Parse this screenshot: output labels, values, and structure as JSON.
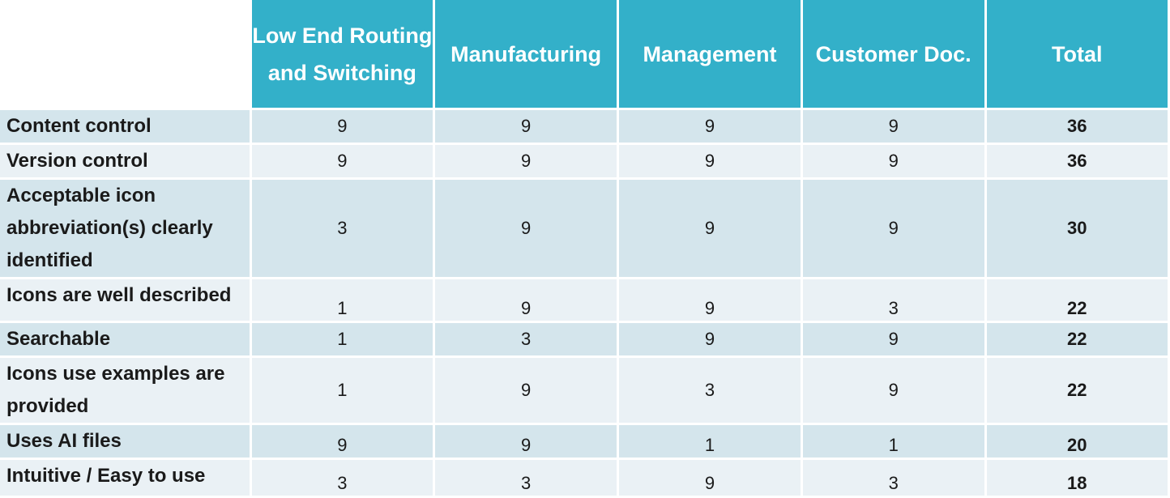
{
  "columns": [
    "Low End Routing and Switching",
    "Manufacturing",
    "Management",
    "Customer Doc.",
    "Total"
  ],
  "rows": [
    {
      "label": "Content control",
      "values": [
        "9",
        "9",
        "9",
        "9"
      ],
      "total": "36"
    },
    {
      "label": "Version control",
      "values": [
        "9",
        "9",
        "9",
        "9"
      ],
      "total": "36"
    },
    {
      "label": "Acceptable icon abbreviation(s) clearly identified",
      "values": [
        "3",
        "9",
        "9",
        "9"
      ],
      "total": "30"
    },
    {
      "label": "Icons are well described",
      "values": [
        "1",
        "9",
        "9",
        "3"
      ],
      "total": "22"
    },
    {
      "label": "Searchable",
      "values": [
        "1",
        "3",
        "9",
        "9"
      ],
      "total": "22"
    },
    {
      "label": "Icons use examples are provided",
      "values": [
        "1",
        "9",
        "3",
        "9"
      ],
      "total": "22"
    },
    {
      "label": "Uses AI files",
      "values": [
        "9",
        "9",
        "1",
        "1"
      ],
      "total": "20"
    },
    {
      "label": "Intuitive / Easy to use",
      "values": [
        "3",
        "3",
        "9",
        "3"
      ],
      "total": "18"
    }
  ]
}
